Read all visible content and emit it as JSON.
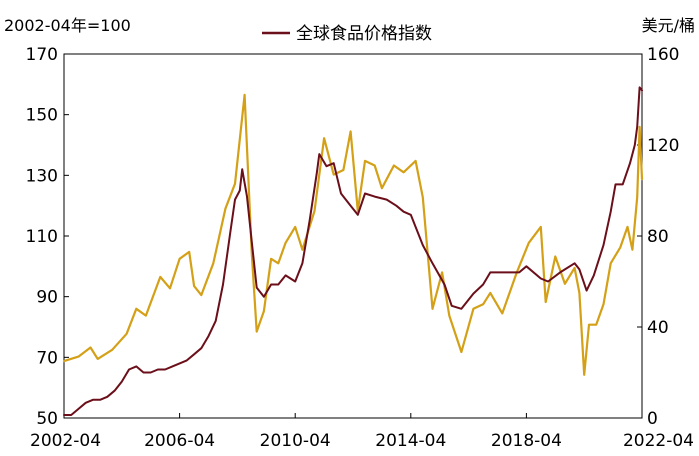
{
  "chart_data": {
    "type": "line",
    "title": "",
    "left_axis_unit": "2002-04年=100",
    "right_axis_unit": "美元/桶",
    "x_tick_labels": [
      "2002-04",
      "2006-04",
      "2010-04",
      "2014-04",
      "2018-04",
      "2022-04"
    ],
    "x_range": [
      "2002-04",
      "2022-04"
    ],
    "left_ylim": [
      50,
      170
    ],
    "left_ticks": [
      50,
      70,
      90,
      110,
      130,
      150,
      170
    ],
    "right_ylim": [
      0,
      160
    ],
    "right_ticks": [
      0,
      40,
      80,
      120,
      160
    ],
    "legend": {
      "position": "top-center",
      "entries": [
        "全球食品价格指数"
      ]
    },
    "grid": false,
    "series": [
      {
        "name": "全球食品价格指数",
        "axis": "left",
        "color": "#6b0f1a",
        "points": [
          [
            "2002-04",
            51
          ],
          [
            "2002-07",
            51
          ],
          [
            "2002-10",
            53
          ],
          [
            "2003-01",
            55
          ],
          [
            "2003-04",
            56
          ],
          [
            "2003-07",
            56
          ],
          [
            "2003-10",
            57
          ],
          [
            "2004-01",
            59
          ],
          [
            "2004-04",
            62
          ],
          [
            "2004-07",
            66
          ],
          [
            "2004-10",
            67
          ],
          [
            "2005-01",
            65
          ],
          [
            "2005-04",
            65
          ],
          [
            "2005-07",
            66
          ],
          [
            "2005-10",
            66
          ],
          [
            "2006-01",
            67
          ],
          [
            "2006-04",
            68
          ],
          [
            "2006-07",
            69
          ],
          [
            "2006-10",
            71
          ],
          [
            "2007-01",
            73
          ],
          [
            "2007-04",
            77
          ],
          [
            "2007-07",
            82
          ],
          [
            "2007-10",
            94
          ],
          [
            "2008-01",
            111
          ],
          [
            "2008-03",
            122
          ],
          [
            "2008-05",
            125
          ],
          [
            "2008-06",
            132
          ],
          [
            "2008-08",
            123
          ],
          [
            "2008-10",
            108
          ],
          [
            "2008-12",
            93
          ],
          [
            "2009-03",
            90
          ],
          [
            "2009-06",
            94
          ],
          [
            "2009-09",
            94
          ],
          [
            "2009-12",
            97
          ],
          [
            "2010-04",
            95
          ],
          [
            "2010-07",
            101
          ],
          [
            "2010-10",
            115
          ],
          [
            "2011-01",
            131
          ],
          [
            "2011-02",
            137
          ],
          [
            "2011-05",
            133
          ],
          [
            "2011-08",
            134
          ],
          [
            "2011-11",
            124
          ],
          [
            "2012-03",
            120
          ],
          [
            "2012-06",
            117
          ],
          [
            "2012-09",
            124
          ],
          [
            "2013-01",
            123
          ],
          [
            "2013-06",
            122
          ],
          [
            "2013-10",
            120
          ],
          [
            "2014-01",
            118
          ],
          [
            "2014-04",
            117
          ],
          [
            "2014-09",
            107
          ],
          [
            "2015-01",
            101
          ],
          [
            "2015-06",
            94
          ],
          [
            "2015-09",
            87
          ],
          [
            "2016-01",
            86
          ],
          [
            "2016-06",
            91
          ],
          [
            "2016-10",
            94
          ],
          [
            "2017-01",
            98
          ],
          [
            "2017-06",
            98
          ],
          [
            "2018-01",
            98
          ],
          [
            "2018-04",
            100
          ],
          [
            "2018-10",
            96
          ],
          [
            "2019-01",
            95
          ],
          [
            "2019-06",
            98
          ],
          [
            "2019-12",
            101
          ],
          [
            "2020-02",
            99
          ],
          [
            "2020-05",
            92
          ],
          [
            "2020-08",
            97
          ],
          [
            "2020-12",
            107
          ],
          [
            "2021-03",
            118
          ],
          [
            "2021-05",
            127
          ],
          [
            "2021-08",
            127
          ],
          [
            "2021-11",
            134
          ],
          [
            "2022-01",
            140
          ],
          [
            "2022-02",
            146
          ],
          [
            "2022-03",
            159
          ],
          [
            "2022-04",
            158
          ]
        ]
      },
      {
        "name": "",
        "axis": "right",
        "color": "#d4a017",
        "points": [
          [
            "2002-04",
            25
          ],
          [
            "2002-10",
            27
          ],
          [
            "2003-03",
            31
          ],
          [
            "2003-06",
            26
          ],
          [
            "2003-12",
            30
          ],
          [
            "2004-06",
            37
          ],
          [
            "2004-10",
            48
          ],
          [
            "2005-02",
            45
          ],
          [
            "2005-08",
            62
          ],
          [
            "2005-12",
            57
          ],
          [
            "2006-04",
            70
          ],
          [
            "2006-08",
            73
          ],
          [
            "2006-10",
            58
          ],
          [
            "2007-01",
            54
          ],
          [
            "2007-06",
            68
          ],
          [
            "2007-11",
            92
          ],
          [
            "2008-03",
            103
          ],
          [
            "2008-07",
            142
          ],
          [
            "2008-10",
            72
          ],
          [
            "2008-12",
            38
          ],
          [
            "2009-03",
            47
          ],
          [
            "2009-06",
            70
          ],
          [
            "2009-09",
            68
          ],
          [
            "2009-12",
            77
          ],
          [
            "2010-04",
            84
          ],
          [
            "2010-07",
            74
          ],
          [
            "2010-12",
            91
          ],
          [
            "2011-04",
            123
          ],
          [
            "2011-08",
            107
          ],
          [
            "2011-12",
            109
          ],
          [
            "2012-03",
            126
          ],
          [
            "2012-06",
            91
          ],
          [
            "2012-09",
            113
          ],
          [
            "2013-01",
            111
          ],
          [
            "2013-04",
            101
          ],
          [
            "2013-09",
            111
          ],
          [
            "2014-01",
            108
          ],
          [
            "2014-06",
            113
          ],
          [
            "2014-09",
            97
          ],
          [
            "2015-01",
            48
          ],
          [
            "2015-05",
            64
          ],
          [
            "2015-08",
            45
          ],
          [
            "2016-01",
            29
          ],
          [
            "2016-06",
            48
          ],
          [
            "2016-10",
            50
          ],
          [
            "2017-01",
            55
          ],
          [
            "2017-06",
            46
          ],
          [
            "2017-12",
            64
          ],
          [
            "2018-05",
            77
          ],
          [
            "2018-10",
            84
          ],
          [
            "2018-12",
            51
          ],
          [
            "2019-04",
            71
          ],
          [
            "2019-08",
            59
          ],
          [
            "2019-12",
            66
          ],
          [
            "2020-02",
            55
          ],
          [
            "2020-04",
            19
          ],
          [
            "2020-06",
            41
          ],
          [
            "2020-09",
            41
          ],
          [
            "2020-12",
            50
          ],
          [
            "2021-03",
            68
          ],
          [
            "2021-07",
            75
          ],
          [
            "2021-10",
            84
          ],
          [
            "2021-12",
            74
          ],
          [
            "2022-02",
            97
          ],
          [
            "2022-03",
            128
          ],
          [
            "2022-04",
            105
          ]
        ]
      }
    ]
  }
}
